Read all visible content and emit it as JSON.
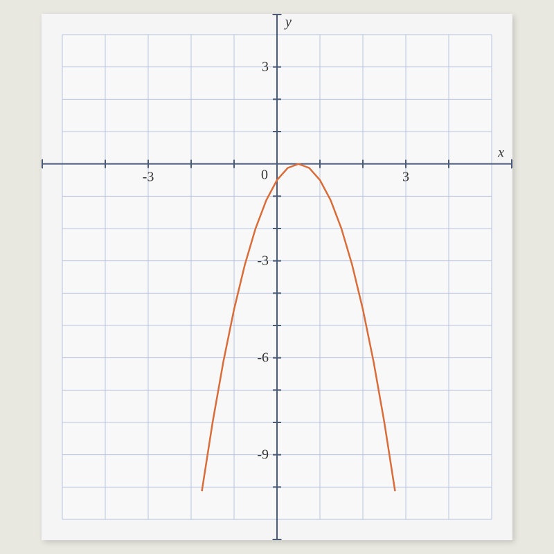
{
  "chart": {
    "type": "line",
    "background_color": "#f5f5f5",
    "plot_background": "#f8f8f8",
    "grid_color": "#b8c4de",
    "axis_color": "#4a5a7a",
    "curve_color": "#d96d3a",
    "x_axis": {
      "label": "x",
      "min": -5,
      "max": 5,
      "tick_values": [
        -3,
        0,
        3
      ],
      "tick_labels": [
        "-3",
        "0",
        "3"
      ]
    },
    "y_axis": {
      "label": "y",
      "min": -11,
      "max": 4,
      "tick_values": [
        3,
        -3,
        -6,
        -9
      ],
      "tick_labels": [
        "3",
        "-3",
        "-6",
        "-9"
      ]
    },
    "parabola": {
      "vertex_x": 0.5,
      "vertex_y": 0,
      "coefficient": -2.0,
      "points": [
        {
          "x": -1.75,
          "y": -10.125
        },
        {
          "x": -1.5,
          "y": -8
        },
        {
          "x": -1.25,
          "y": -6.125
        },
        {
          "x": -1,
          "y": -4.5
        },
        {
          "x": -0.75,
          "y": -3.125
        },
        {
          "x": -0.5,
          "y": -2
        },
        {
          "x": -0.25,
          "y": -1.125
        },
        {
          "x": 0,
          "y": -0.5
        },
        {
          "x": 0.25,
          "y": -0.125
        },
        {
          "x": 0.5,
          "y": 0
        },
        {
          "x": 0.75,
          "y": -0.125
        },
        {
          "x": 1,
          "y": -0.5
        },
        {
          "x": 1.25,
          "y": -1.125
        },
        {
          "x": 1.5,
          "y": -2
        },
        {
          "x": 1.75,
          "y": -3.125
        },
        {
          "x": 2,
          "y": -4.5
        },
        {
          "x": 2.25,
          "y": -6.125
        },
        {
          "x": 2.5,
          "y": -8
        },
        {
          "x": 2.75,
          "y": -10.125
        }
      ]
    }
  }
}
